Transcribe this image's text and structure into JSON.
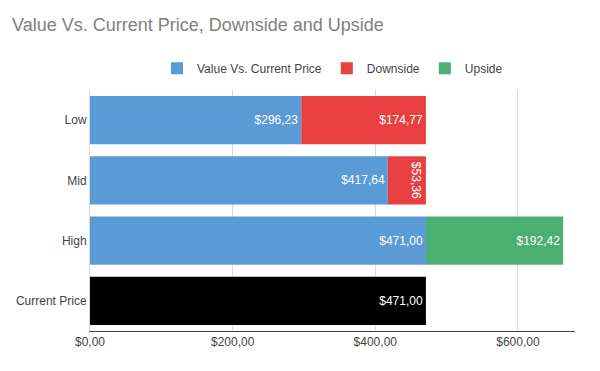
{
  "chart_data": {
    "type": "bar",
    "title": "Value Vs. Current Price, Downside and Upside",
    "orientation": "horizontal",
    "stacked": true,
    "categories": [
      "Current Price",
      "High",
      "Mid",
      "Low"
    ],
    "series": [
      {
        "color": "#000000",
        "values": [
          471.0,
          0,
          0,
          0
        ],
        "value_labels": [
          "$471,00",
          null,
          null,
          null
        ]
      },
      {
        "name": "Value Vs. Current Price",
        "color": "#5B9BD5",
        "values": [
          0,
          471.0,
          417.64,
          296.23
        ],
        "value_labels": [
          null,
          "$471,00",
          "$417,64",
          "$296,23"
        ]
      },
      {
        "name": "Downside",
        "color": "#E84040",
        "values": [
          0,
          0,
          53.36,
          174.77
        ],
        "value_labels": [
          null,
          null,
          "$53,36",
          "$174,77"
        ]
      },
      {
        "name": "Upside",
        "color": "#4CAF72",
        "values": [
          0,
          192.42,
          0,
          0
        ],
        "value_labels": [
          null,
          "$192,42",
          null,
          null
        ]
      }
    ],
    "xlim": [
      0,
      680
    ],
    "xticks": [
      {
        "value": 0,
        "label": "$0,00"
      },
      {
        "value": 200,
        "label": "$200,00"
      },
      {
        "value": 400,
        "label": "$400,00"
      },
      {
        "value": 600,
        "label": "$600,00"
      }
    ],
    "grid": true,
    "legend": "top",
    "data_labels": true
  }
}
